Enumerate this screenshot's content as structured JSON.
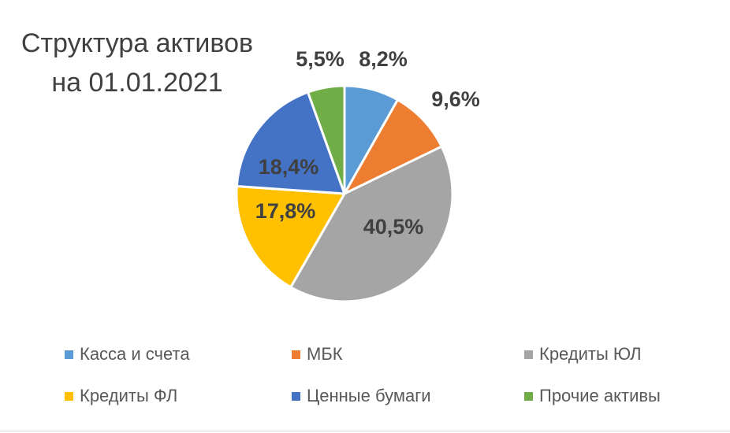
{
  "chart_data": {
    "type": "pie",
    "title": [
      "Структура активов",
      "на 01.01.2021"
    ],
    "categories": [
      "Касса и счета",
      "МБК",
      "Кредиты ЮЛ",
      "Кредиты ФЛ",
      "Ценные бумаги",
      "Прочие активы"
    ],
    "values": [
      8.2,
      9.6,
      40.5,
      17.8,
      18.4,
      5.5
    ],
    "labels": [
      "8,2%",
      "9,6%",
      "40,5%",
      "17,8%",
      "18,4%",
      "5,5%"
    ],
    "colors": [
      "#5B9BD5",
      "#ED7D31",
      "#A5A5A5",
      "#FFC000",
      "#4472C4",
      "#70AD47"
    ],
    "legend_position": "bottom"
  }
}
